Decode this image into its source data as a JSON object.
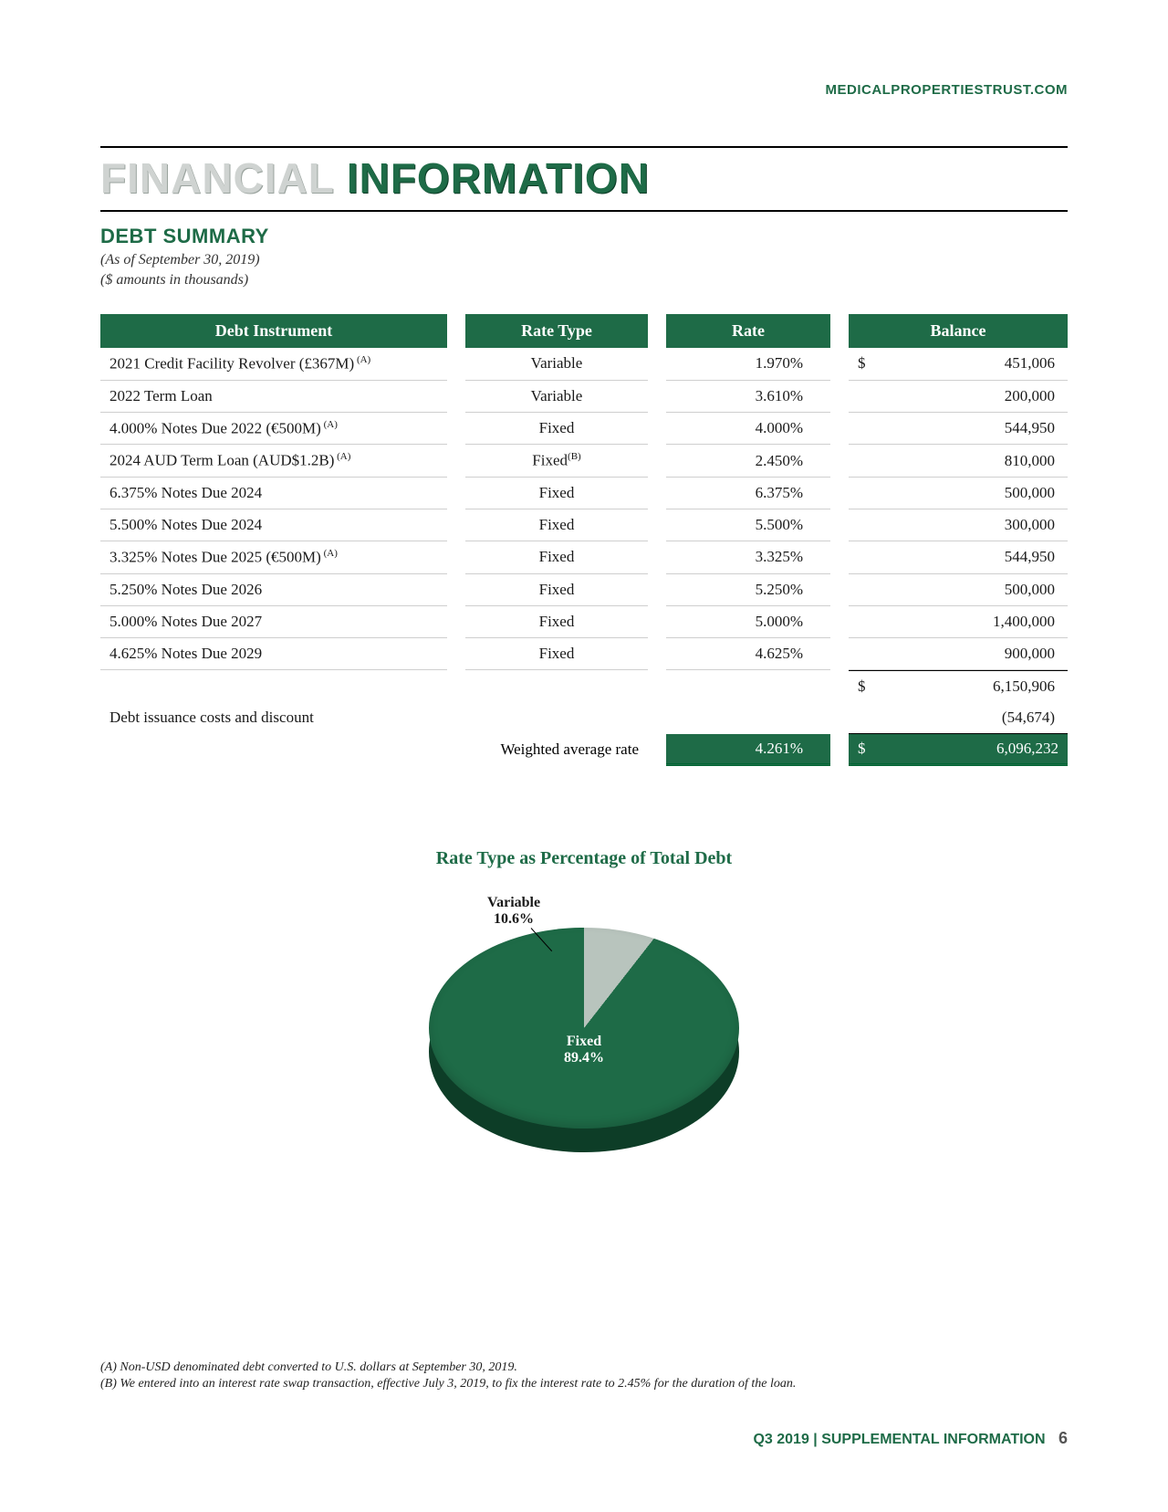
{
  "website": "MEDICALPROPERTIESTRUST.COM",
  "title": {
    "word1": "FINANCIAL",
    "word2": "INFORMATION"
  },
  "subtitle": "DEBT SUMMARY",
  "meta1": "(As of September 30, 2019)",
  "meta2": "($ amounts in thousands)",
  "columns": {
    "c1": "Debt Instrument",
    "c2": "Rate Type",
    "c3": "Rate",
    "c4": "Balance"
  },
  "rows": [
    {
      "instrument": "2021 Credit Facility Revolver (£367M)",
      "sup": "(A)",
      "ratetype": "Variable",
      "ratesup": "",
      "rate": "1.970%",
      "dollar": "$",
      "balance": "451,006"
    },
    {
      "instrument": "2022 Term Loan",
      "sup": "",
      "ratetype": "Variable",
      "ratesup": "",
      "rate": "3.610%",
      "dollar": "",
      "balance": "200,000"
    },
    {
      "instrument": "4.000% Notes Due 2022 (€500M)",
      "sup": "(A)",
      "ratetype": "Fixed",
      "ratesup": "",
      "rate": "4.000%",
      "dollar": "",
      "balance": "544,950"
    },
    {
      "instrument": "2024 AUD Term Loan (AUD$1.2B)",
      "sup": "(A)",
      "ratetype": "Fixed",
      "ratesup": "(B)",
      "rate": "2.450%",
      "dollar": "",
      "balance": "810,000"
    },
    {
      "instrument": "6.375% Notes Due 2024",
      "sup": "",
      "ratetype": "Fixed",
      "ratesup": "",
      "rate": "6.375%",
      "dollar": "",
      "balance": "500,000"
    },
    {
      "instrument": "5.500% Notes Due 2024",
      "sup": "",
      "ratetype": "Fixed",
      "ratesup": "",
      "rate": "5.500%",
      "dollar": "",
      "balance": "300,000"
    },
    {
      "instrument": "3.325% Notes Due 2025 (€500M)",
      "sup": "(A)",
      "ratetype": "Fixed",
      "ratesup": "",
      "rate": "3.325%",
      "dollar": "",
      "balance": "544,950"
    },
    {
      "instrument": "5.250% Notes Due 2026",
      "sup": "",
      "ratetype": "Fixed",
      "ratesup": "",
      "rate": "5.250%",
      "dollar": "",
      "balance": "500,000"
    },
    {
      "instrument": "5.000% Notes Due 2027",
      "sup": "",
      "ratetype": "Fixed",
      "ratesup": "",
      "rate": "5.000%",
      "dollar": "",
      "balance": "1,400,000"
    },
    {
      "instrument": "4.625% Notes Due 2029",
      "sup": "",
      "ratetype": "Fixed",
      "ratesup": "",
      "rate": "4.625%",
      "dollar": "",
      "balance": "900,000"
    }
  ],
  "subtotal": {
    "dollar": "$",
    "balance": "6,150,906"
  },
  "issuance": {
    "label": "Debt issuance costs and discount",
    "balance": "(54,674)"
  },
  "final": {
    "label": "Weighted average rate",
    "rate": "4.261%",
    "dollar": "$",
    "balance": "6,096,232"
  },
  "chart": {
    "title": "Rate Type as Percentage of Total Debt",
    "variable_label": "Variable",
    "variable_pct": "10.6%",
    "fixed_label": "Fixed",
    "fixed_pct": "89.4%",
    "slice_colors": {
      "variable": "#b8c4bd",
      "fixed": "#1e6b47",
      "base": "#0d3d27"
    },
    "variable_degrees": 38
  },
  "footnotes": {
    "a": "(A) Non-USD denominated debt converted to U.S. dollars at September 30, 2019.",
    "b": "(B) We entered into an interest rate swap transaction, effective July 3, 2019, to fix the interest rate to 2.45% for the duration of the loan."
  },
  "footer": {
    "text": "Q3 2019 | SUPPLEMENTAL INFORMATION",
    "page": "6"
  }
}
